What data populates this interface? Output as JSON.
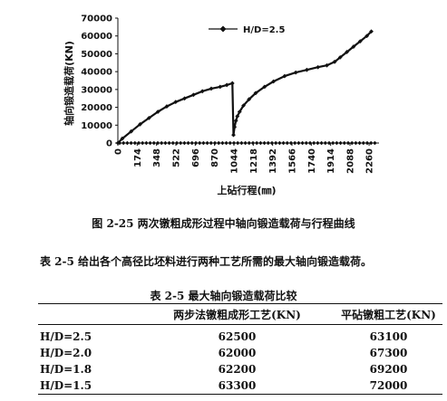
{
  "chart_data": {
    "type": "line",
    "xlabel": "上砧行程(㎜)",
    "ylabel": "轴向锻造载荷(KN)",
    "x_ticks": [
      "0",
      "174",
      "348",
      "522",
      "696",
      "870",
      "1044",
      "1218",
      "1392",
      "1566",
      "1740",
      "1914",
      "2088",
      "2260"
    ],
    "y_ticks": [
      "0",
      "10000",
      "20000",
      "30000",
      "40000",
      "50000",
      "60000",
      "70000"
    ],
    "xlim": [
      0,
      2349
    ],
    "ylim": [
      0,
      70000
    ],
    "legend_position": "top",
    "series": [
      {
        "name": "H/D=2.5",
        "color": "#111111",
        "points": [
          [
            0,
            0
          ],
          [
            40,
            2500
          ],
          [
            120,
            6500
          ],
          [
            200,
            10500
          ],
          [
            280,
            14000
          ],
          [
            360,
            17500
          ],
          [
            440,
            20500
          ],
          [
            520,
            23000
          ],
          [
            600,
            25000
          ],
          [
            680,
            27000
          ],
          [
            760,
            29000
          ],
          [
            840,
            30500
          ],
          [
            920,
            31500
          ],
          [
            980,
            32500
          ],
          [
            1030,
            33500
          ],
          [
            1040,
            4500
          ],
          [
            1050,
            9000
          ],
          [
            1062,
            12500
          ],
          [
            1075,
            15000
          ],
          [
            1095,
            17500
          ],
          [
            1130,
            21000
          ],
          [
            1180,
            24500
          ],
          [
            1240,
            28000
          ],
          [
            1320,
            31500
          ],
          [
            1400,
            34500
          ],
          [
            1500,
            37500
          ],
          [
            1600,
            39500
          ],
          [
            1700,
            41000
          ],
          [
            1800,
            42500
          ],
          [
            1880,
            43500
          ],
          [
            1950,
            45500
          ],
          [
            2000,
            48000
          ],
          [
            2060,
            51000
          ],
          [
            2120,
            54000
          ],
          [
            2180,
            57000
          ],
          [
            2240,
            60000
          ],
          [
            2280,
            62500
          ]
        ],
        "baseline_value": 0
      }
    ]
  },
  "figure_caption": "图 2-25  两次镦粗成形过程中轴向锻造载荷与行程曲线",
  "paragraph": "表 2-5 给出各个高径比坯料进行两种工艺所需的最大轴向锻造载荷。",
  "table": {
    "title": "表 2-5  最大轴向锻造载荷比较",
    "headers": [
      "",
      "两步法镦粗成形工艺(KN)",
      "平砧镦粗工艺(KN)"
    ],
    "rows": [
      [
        "H/D=2.5",
        "62500",
        "63100"
      ],
      [
        "H/D=2.0",
        "62000",
        "67300"
      ],
      [
        "H/D=1.8",
        "62200",
        "69200"
      ],
      [
        "H/D=1.5",
        "63300",
        "72000"
      ]
    ]
  }
}
